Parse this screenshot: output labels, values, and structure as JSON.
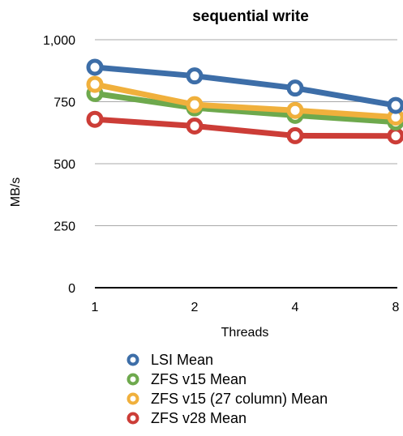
{
  "chart_data": {
    "type": "line",
    "title": "sequential write",
    "xlabel": "Threads",
    "ylabel": "MB/s",
    "categories": [
      "1",
      "2",
      "4",
      "8"
    ],
    "y_ticks": [
      "0",
      "250",
      "500",
      "750",
      "1,000"
    ],
    "ylim": [
      0,
      1000
    ],
    "grid": true,
    "legend_position": "bottom",
    "series": [
      {
        "name": "LSI Mean",
        "color": "#3d6ea8",
        "values": [
          889,
          854,
          805,
          735
        ]
      },
      {
        "name": "ZFS v15 (27 column) Mean",
        "color": "#f0b03c",
        "values": [
          820,
          738,
          715,
          688
        ]
      },
      {
        "name": "ZFS v15 Mean",
        "color": "#6ea94d",
        "values": [
          783,
          725,
          695,
          668
        ]
      },
      {
        "name": "ZFS v28 Mean",
        "color": "#cc3d37",
        "values": [
          679,
          652,
          613,
          612
        ]
      }
    ]
  },
  "legend_order": [
    0,
    2,
    1,
    3
  ]
}
